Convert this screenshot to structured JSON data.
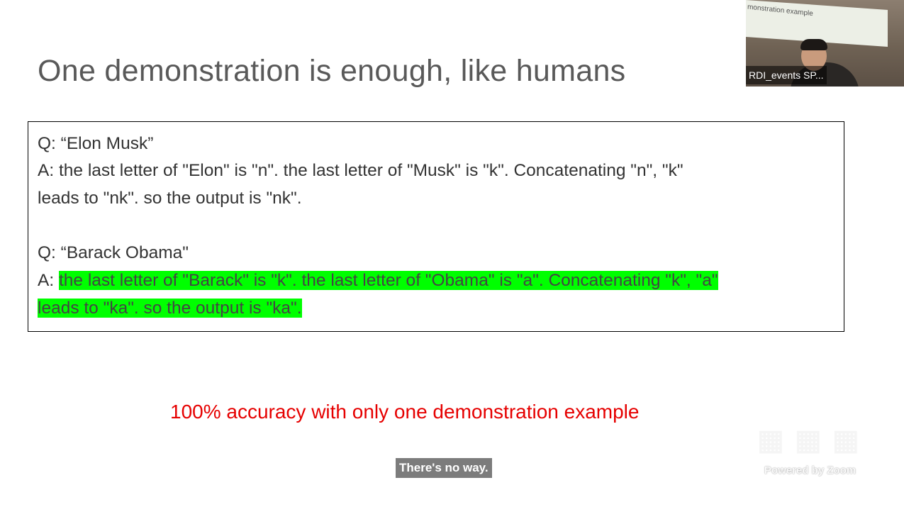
{
  "slide": {
    "title": "One demonstration is enough, like humans",
    "example": {
      "q1": "Q: “Elon Musk”",
      "a1_line1": "A: the last letter of \"Elon\" is \"n\". the last letter of \"Musk\" is \"k\". Concatenating \"n\", \"k\"",
      "a1_line2": "leads to \"nk\". so the output is \"nk\".",
      "q2": "Q: “Barack Obama\"",
      "a2_prefix": "A: ",
      "a2_line1": "the last letter of \"Barack\" is \"k\". the last letter of \"Obama\" is \"a\". Concatenating \"k\", \"a\"",
      "a2_line2": "leads to \"ka\". so the output is \"ka\"."
    },
    "highlight_color": "#00ff00",
    "accuracy_note": "100% accuracy with only one demonstration example",
    "accuracy_color": "#e60000"
  },
  "video": {
    "participant_name": "RDI_events SP...",
    "background_text": "monstration example"
  },
  "caption": "There's no way.",
  "watermark": "Powered by Zoom"
}
